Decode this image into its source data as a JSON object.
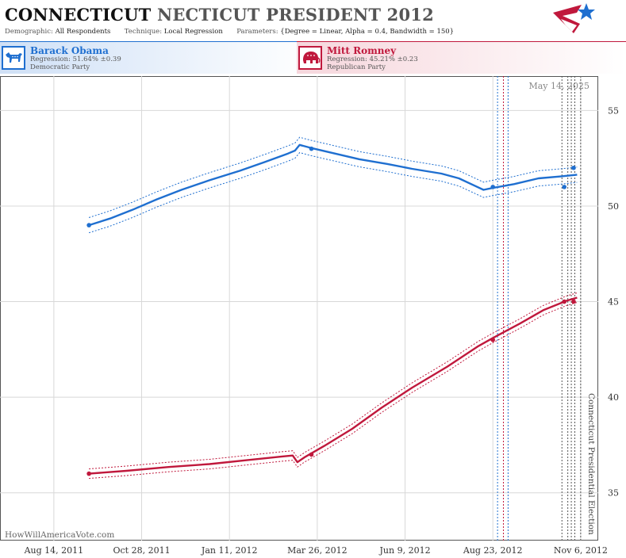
{
  "header": {
    "title_main": "CONNECTICUT",
    "title_rest": "NECTICUT PRESIDENT 2012",
    "demographic_label": "Demographic:",
    "demographic_value": "All Respondents",
    "technique_label": "Technique:",
    "technique_value": "Local Regression",
    "parameters_label": "Parameters:",
    "parameters_value": "{Degree = Linear, Alpha = 0.4, Bandwidth = 150}"
  },
  "legend": {
    "dem": {
      "name": "Barack Obama",
      "regression": "Regression: 51.64% ±0.39",
      "party": "Democratic Party"
    },
    "rep": {
      "name": "Mitt Romney",
      "regression": "Regression: 45.21% ±0.23",
      "party": "Republican Party"
    }
  },
  "colors": {
    "dem": "#1f6fd0",
    "rep": "#c0183c",
    "grid": "#d8d8d8",
    "text": "#444444"
  },
  "chart_data": {
    "type": "line",
    "date_stamp": "May 14, 2025",
    "watermark": "HowWillAmericaVote.com",
    "event_label": "Connecticut Presidential Election",
    "event_date": "2012-11-06",
    "x_tick_labels": [
      "Aug 14, 2011",
      "Oct 28, 2011",
      "Jan 11, 2012",
      "Mar 26, 2012",
      "Jun 9, 2012",
      "Aug 23, 2012",
      "Nov 6, 2012"
    ],
    "x_tick_dates": [
      "2011-08-14",
      "2011-10-28",
      "2012-01-11",
      "2012-03-26",
      "2012-06-09",
      "2012-08-23",
      "2012-11-06"
    ],
    "xlim": [
      "2011-06-29",
      "2012-11-21"
    ],
    "ylim": [
      32.5,
      56.8
    ],
    "y_ticks": [
      35,
      40,
      45,
      50,
      55
    ],
    "grid": true,
    "poll_date_lines": [
      {
        "date": "2012-08-27",
        "color": "#1f6fd0"
      },
      {
        "date": "2012-09-01",
        "color": "#c0183c"
      },
      {
        "date": "2012-09-05",
        "color": "#1f6fd0"
      },
      {
        "date": "2012-10-21",
        "color": "#555555"
      },
      {
        "date": "2012-10-26",
        "color": "#555555"
      },
      {
        "date": "2012-10-29",
        "color": "#555555"
      },
      {
        "date": "2012-11-01",
        "color": "#555555"
      },
      {
        "date": "2012-11-06",
        "color": "#555555"
      }
    ],
    "series": [
      {
        "name": "Barack Obama",
        "color": "#1f6fd0",
        "band": 0.4,
        "trend": [
          [
            "2011-09-13",
            49.0
          ],
          [
            "2011-10-01",
            49.35
          ],
          [
            "2011-10-20",
            49.8
          ],
          [
            "2011-11-10",
            50.35
          ],
          [
            "2011-12-01",
            50.85
          ],
          [
            "2011-12-25",
            51.35
          ],
          [
            "2012-01-20",
            51.85
          ],
          [
            "2012-02-10",
            52.3
          ],
          [
            "2012-03-01",
            52.75
          ],
          [
            "2012-03-07",
            52.9
          ],
          [
            "2012-03-11",
            53.2
          ],
          [
            "2012-03-20",
            53.05
          ],
          [
            "2012-04-10",
            52.75
          ],
          [
            "2012-05-01",
            52.45
          ],
          [
            "2012-05-25",
            52.2
          ],
          [
            "2012-06-15",
            51.95
          ],
          [
            "2012-07-10",
            51.7
          ],
          [
            "2012-07-25",
            51.45
          ],
          [
            "2012-08-08",
            51.05
          ],
          [
            "2012-08-15",
            50.85
          ],
          [
            "2012-08-23",
            50.95
          ],
          [
            "2012-09-10",
            51.15
          ],
          [
            "2012-10-01",
            51.45
          ],
          [
            "2012-10-20",
            51.55
          ],
          [
            "2012-11-03",
            51.64
          ]
        ],
        "points": [
          {
            "x": "2011-09-13",
            "y": 49
          },
          {
            "x": "2012-03-21",
            "y": 53
          },
          {
            "x": "2012-08-23",
            "y": 51
          },
          {
            "x": "2012-10-23",
            "y": 51
          },
          {
            "x": "2012-10-31",
            "y": 52
          }
        ]
      },
      {
        "name": "Mitt Romney",
        "color": "#c0183c",
        "band": 0.25,
        "trend": [
          [
            "2011-09-13",
            36.0
          ],
          [
            "2011-10-15",
            36.15
          ],
          [
            "2011-11-20",
            36.35
          ],
          [
            "2011-12-25",
            36.5
          ],
          [
            "2012-01-25",
            36.7
          ],
          [
            "2012-02-25",
            36.9
          ],
          [
            "2012-03-05",
            36.95
          ],
          [
            "2012-03-09",
            36.6
          ],
          [
            "2012-03-15",
            36.85
          ],
          [
            "2012-04-01",
            37.45
          ],
          [
            "2012-04-25",
            38.35
          ],
          [
            "2012-05-20",
            39.45
          ],
          [
            "2012-06-15",
            40.5
          ],
          [
            "2012-07-15",
            41.6
          ],
          [
            "2012-08-10",
            42.65
          ],
          [
            "2012-08-23",
            43.1
          ],
          [
            "2012-09-15",
            43.85
          ],
          [
            "2012-10-05",
            44.55
          ],
          [
            "2012-10-25",
            45.05
          ],
          [
            "2012-11-03",
            45.21
          ]
        ],
        "points": [
          {
            "x": "2011-09-13",
            "y": 36
          },
          {
            "x": "2012-03-21",
            "y": 37
          },
          {
            "x": "2012-08-23",
            "y": 43
          },
          {
            "x": "2012-10-23",
            "y": 45
          },
          {
            "x": "2012-10-31",
            "y": 45
          }
        ]
      }
    ]
  }
}
